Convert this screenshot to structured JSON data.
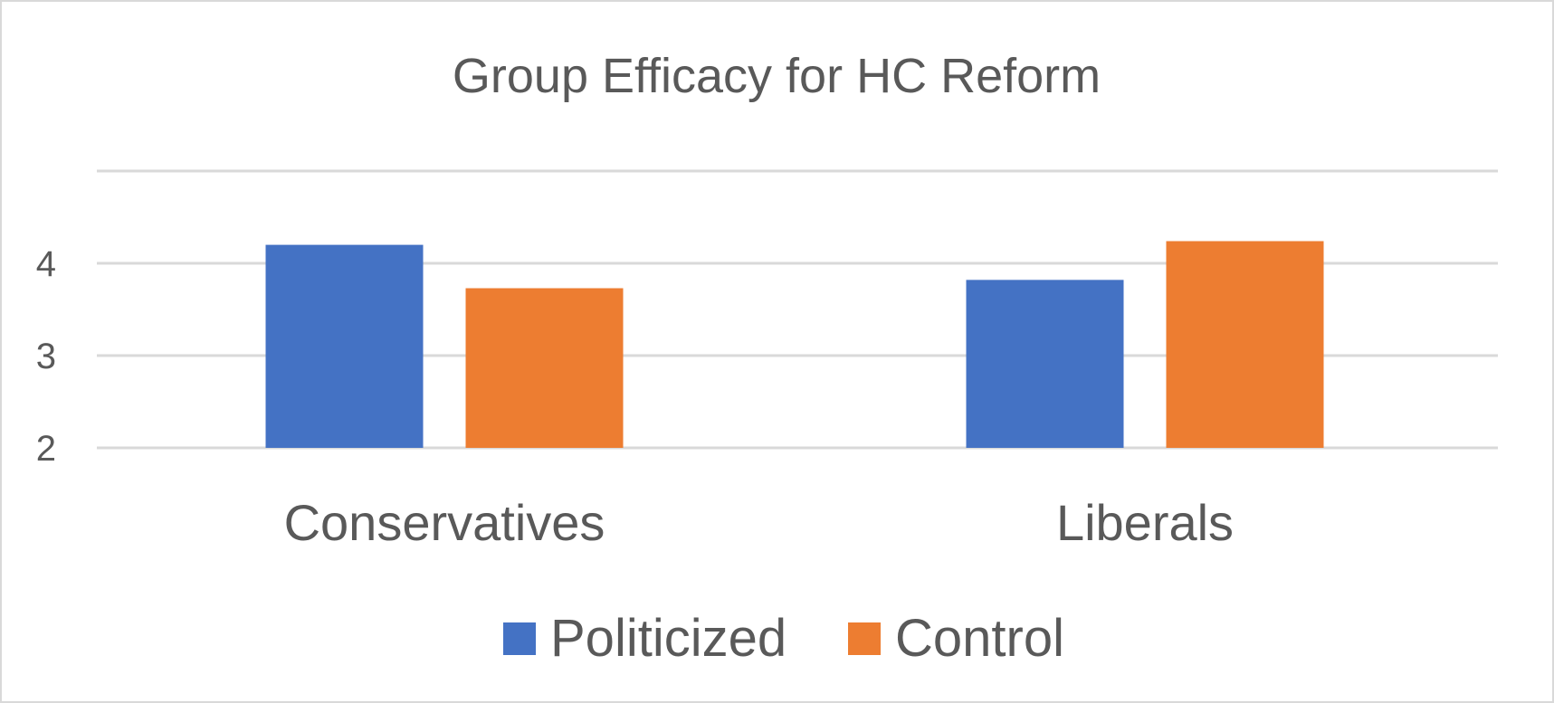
{
  "chart_data": {
    "type": "bar",
    "title": "Group Efficacy for HC Reform",
    "categories": [
      "Conservatives",
      "Liberals"
    ],
    "series": [
      {
        "name": "Politicized",
        "color": "#4472C4",
        "values": [
          4.2,
          3.82
        ]
      },
      {
        "name": "Control",
        "color": "#ED7D31",
        "values": [
          3.73,
          4.24
        ]
      }
    ],
    "ylim": [
      2,
      5
    ],
    "yticks": [
      "2",
      "3",
      "4"
    ],
    "ytick_values": [
      2,
      3,
      4
    ],
    "gridlines": [
      2,
      3,
      4,
      5
    ],
    "grid": true,
    "legend": "bottom",
    "xlabel": "",
    "ylabel": ""
  }
}
